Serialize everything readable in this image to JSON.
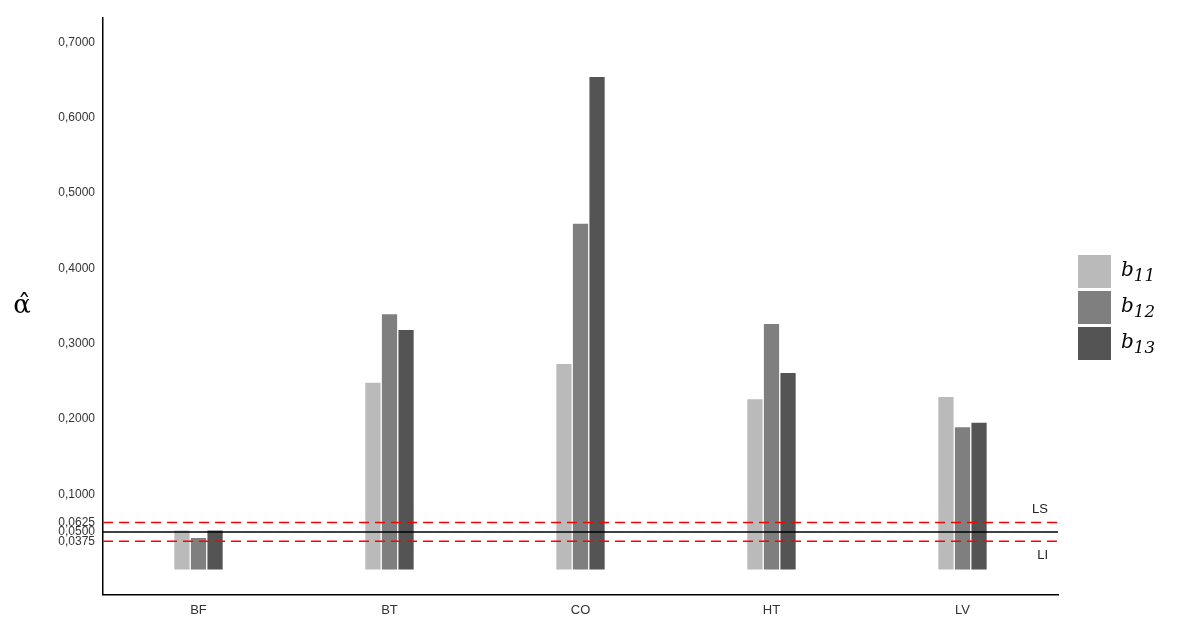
{
  "chart_data": {
    "type": "bar",
    "ylabel": "α̂",
    "categories": [
      "BF",
      "BT",
      "CO",
      "HT",
      "LV"
    ],
    "series": [
      {
        "name": "b$_{11}$",
        "color": "#bababa",
        "values": [
          0.052,
          0.248,
          0.273,
          0.226,
          0.229
        ]
      },
      {
        "name": "b$_{12}$",
        "color": "#7f7f7f",
        "values": [
          0.042,
          0.339,
          0.459,
          0.326,
          0.189
        ]
      },
      {
        "name": "b$_{13}$",
        "color": "#545454",
        "values": [
          0.052,
          0.318,
          0.654,
          0.261,
          0.195
        ]
      }
    ],
    "ylim": [
      -0.033,
      0.732
    ],
    "yticks": [
      {
        "value": 0.0375,
        "label": "0,0375"
      },
      {
        "value": 0.05,
        "label": "0,0500"
      },
      {
        "value": 0.0625,
        "label": "0,0625"
      },
      {
        "value": 0.1,
        "label": "0,1000"
      },
      {
        "value": 0.2,
        "label": "0,2000"
      },
      {
        "value": 0.3,
        "label": "0,3000"
      },
      {
        "value": 0.4,
        "label": "0,4000"
      },
      {
        "value": 0.5,
        "label": "0,5000"
      },
      {
        "value": 0.6,
        "label": "0,6000"
      },
      {
        "value": 0.7,
        "label": "0,7000"
      }
    ],
    "ref_lines": [
      {
        "axis": "y",
        "value": 0.0625,
        "label": "LS",
        "color": "#ff0000",
        "line_style": "dashed"
      },
      {
        "axis": "y",
        "value": 0.05,
        "label": null,
        "color": "#000000",
        "line_style": "solid"
      },
      {
        "axis": "y",
        "value": 0.0375,
        "label": "LI",
        "color": "#ff0000",
        "line_style": "dashed"
      }
    ],
    "grid": false,
    "legend": "right"
  }
}
